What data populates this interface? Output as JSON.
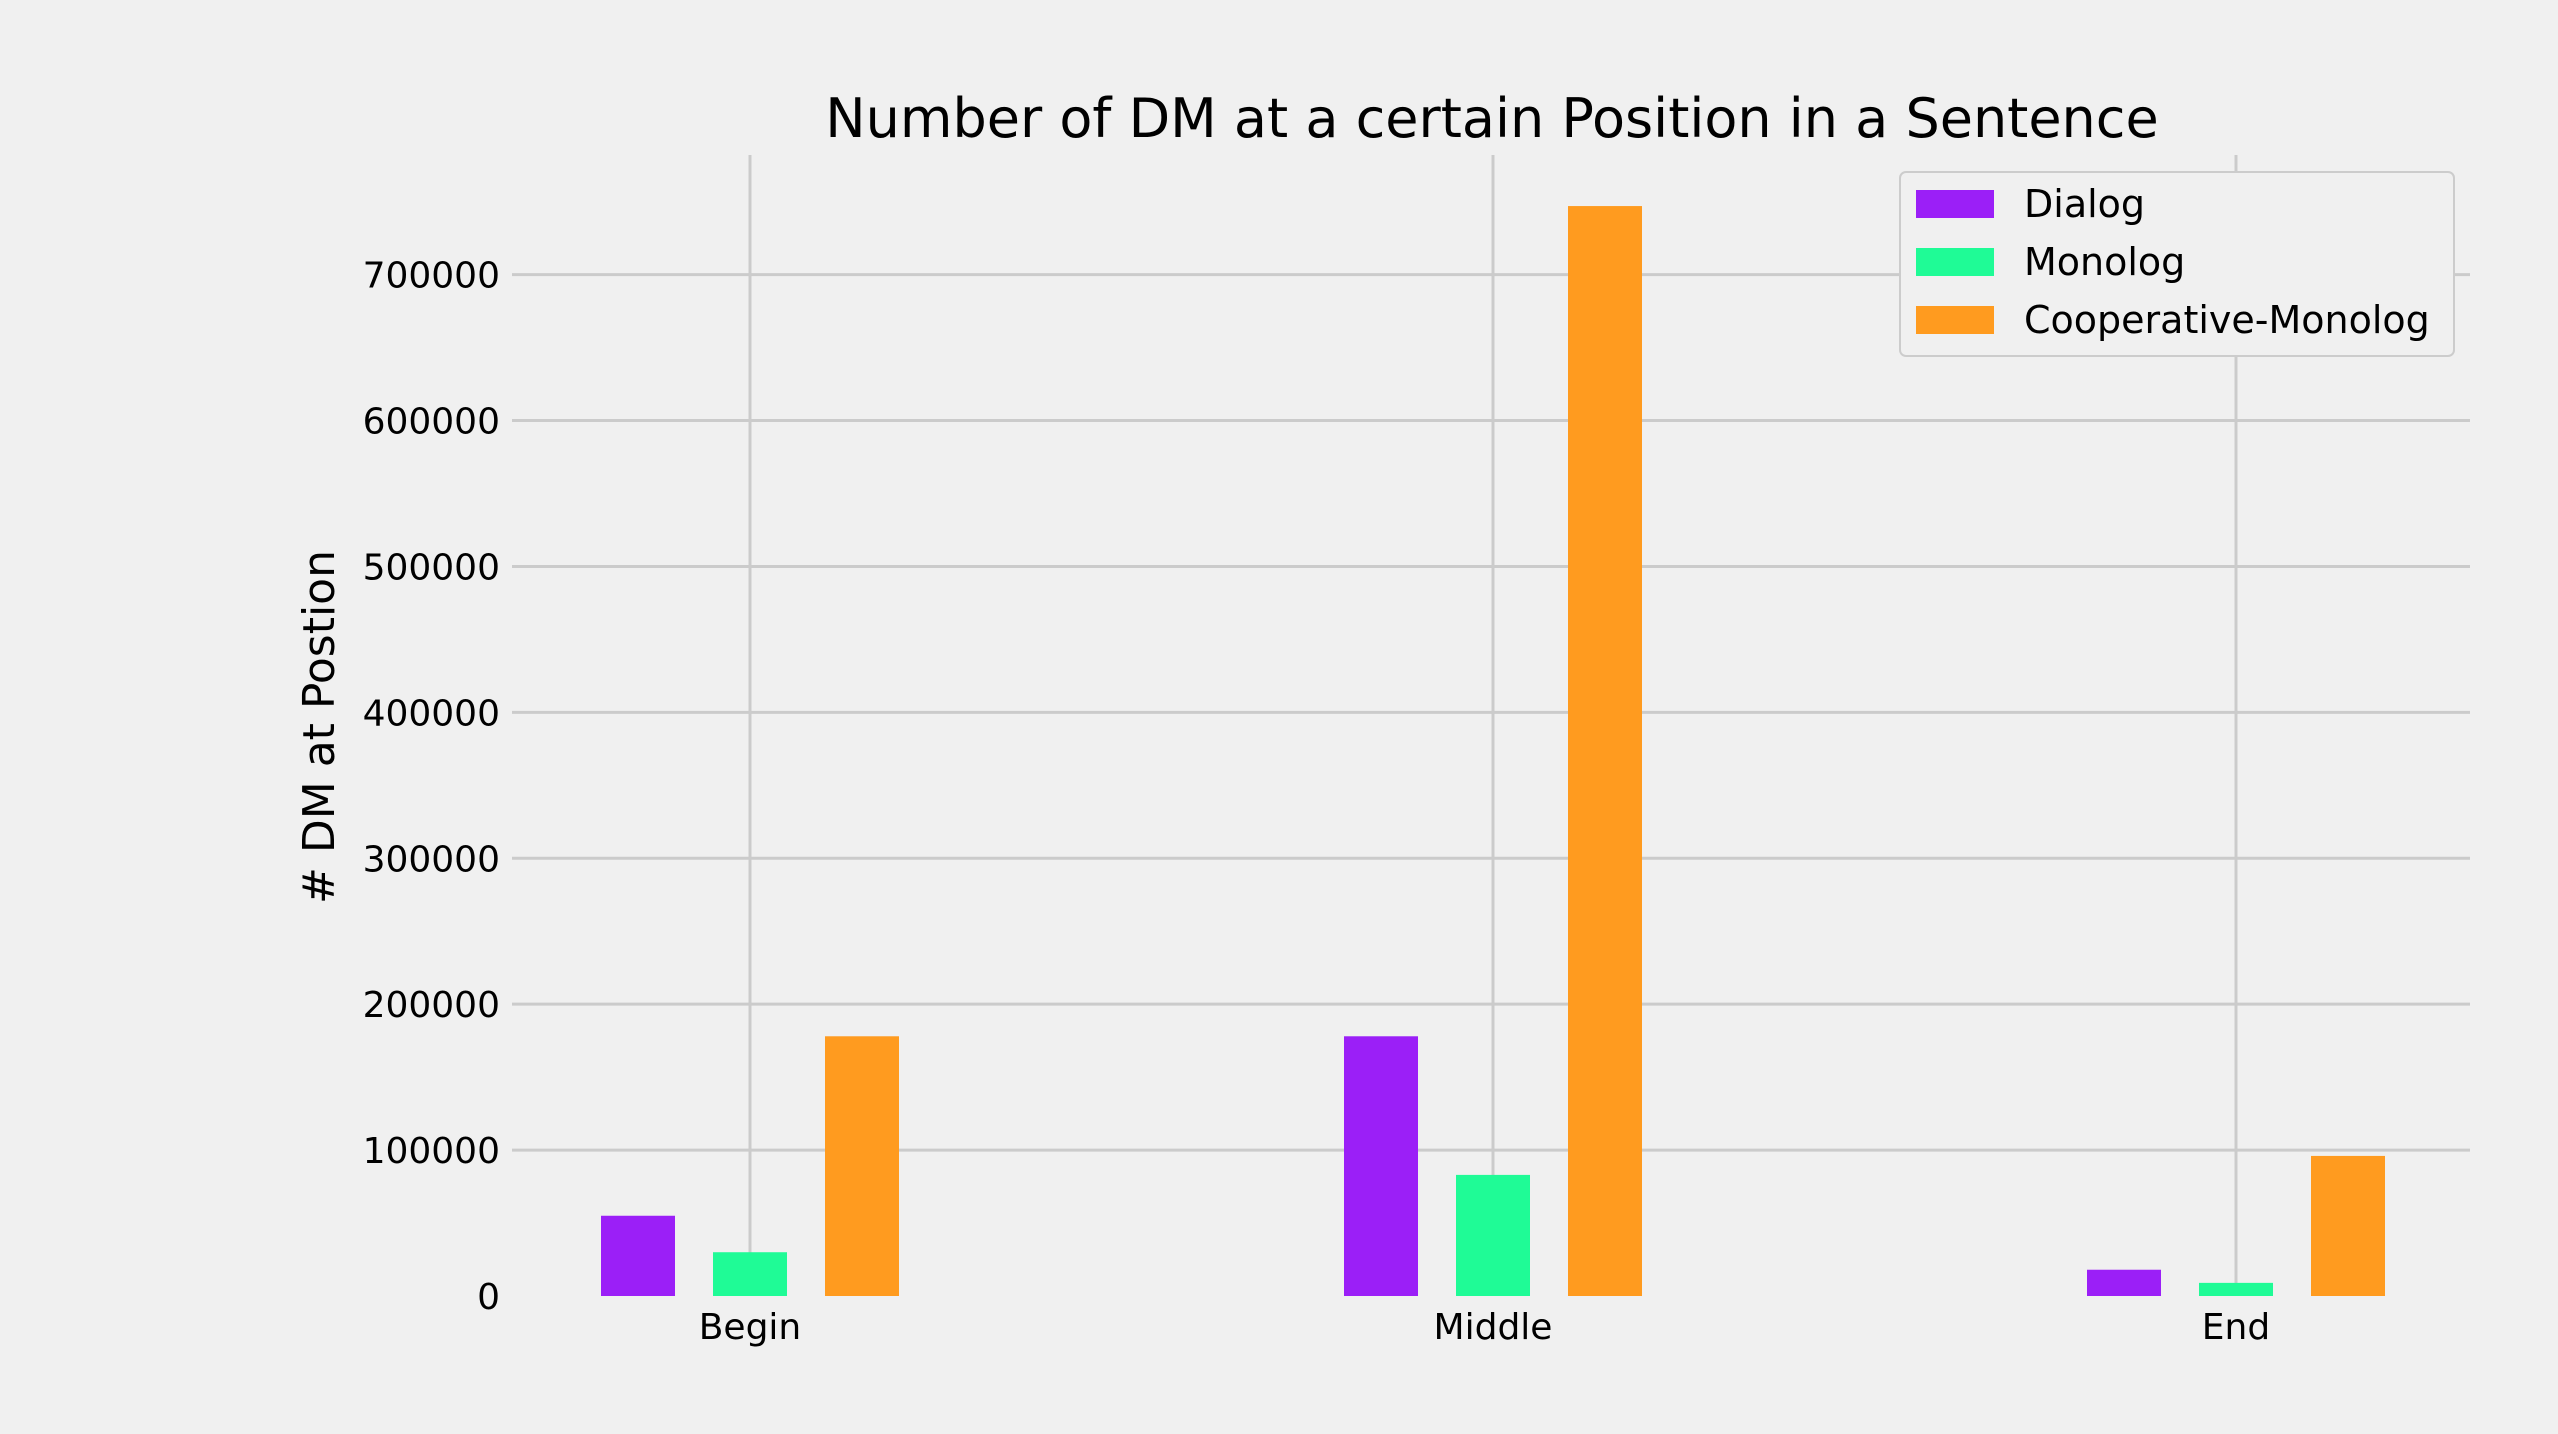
{
  "chart_data": {
    "type": "bar",
    "title": "Number of DM at a certain Position in a Sentence",
    "xlabel": "",
    "ylabel": "# DM at Postion",
    "categories": [
      "Begin",
      "Middle",
      "End"
    ],
    "series": [
      {
        "name": "Dialog",
        "color": "#9b1ff7",
        "values": [
          55000,
          178000,
          18000
        ]
      },
      {
        "name": "Monolog",
        "color": "#1ffb96",
        "values": [
          30000,
          83000,
          9000
        ]
      },
      {
        "name": "Cooperative-Monolog",
        "color": "#ff9b1f",
        "values": [
          178000,
          747000,
          96000
        ]
      }
    ],
    "ylim": [
      0,
      782000
    ],
    "yticks": [
      "0",
      "100000",
      "200000",
      "300000",
      "400000",
      "500000",
      "600000",
      "700000"
    ],
    "grid": true,
    "legend_position": "top-right"
  }
}
